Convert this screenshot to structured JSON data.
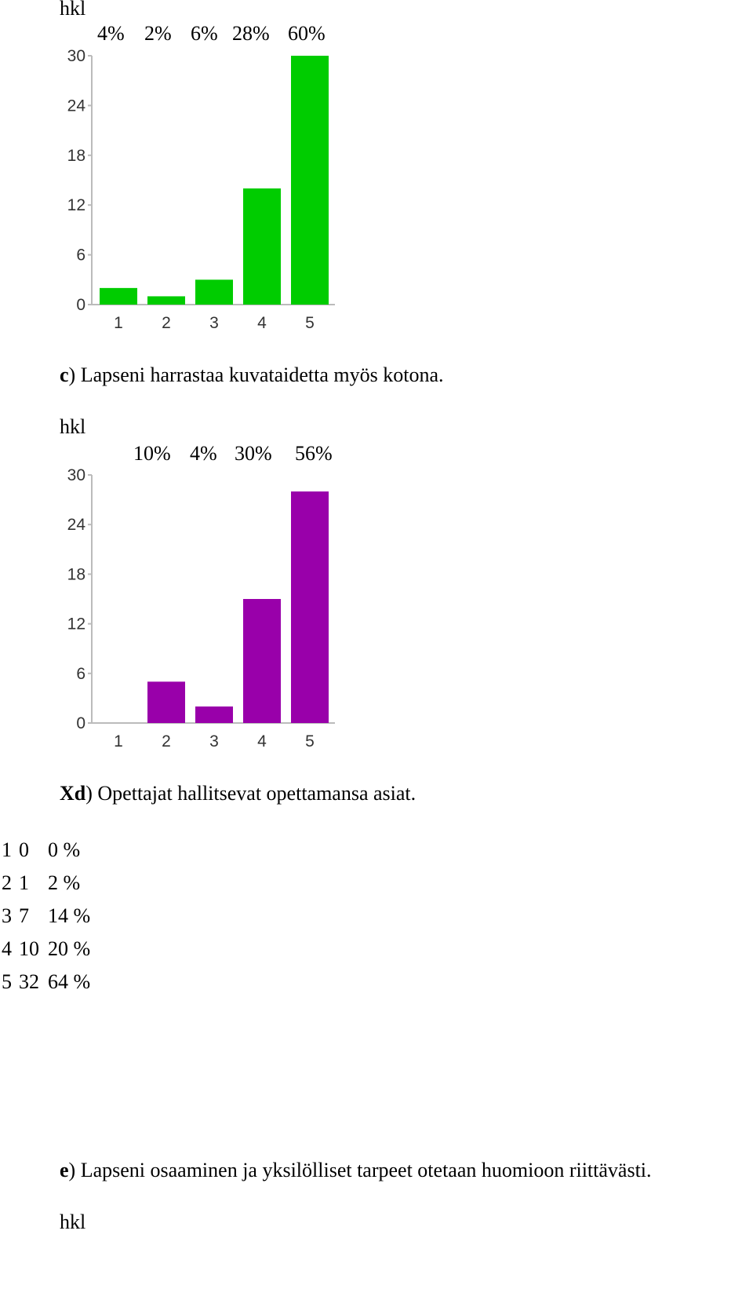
{
  "chart_data": [
    {
      "type": "bar",
      "ylabel": "hkl",
      "categories": [
        "1",
        "2",
        "3",
        "4",
        "5"
      ],
      "values": [
        2,
        1,
        3,
        14,
        30
      ],
      "percent_labels": [
        "4%",
        "2%",
        "6%",
        "28%",
        "60%"
      ],
      "yticks": [
        "0",
        "6",
        "12",
        "18",
        "24",
        "30"
      ],
      "ylim": [
        0,
        30
      ],
      "color": "#00cc00"
    },
    {
      "type": "bar",
      "title_prefix": "c",
      "title": ") Lapseni harrastaa kuvataidetta myös kotona.",
      "ylabel": "hkl",
      "categories": [
        "1",
        "2",
        "3",
        "4",
        "5"
      ],
      "values": [
        0,
        5,
        2,
        15,
        28
      ],
      "percent_labels": [
        "10%",
        "4%",
        "30%",
        "56%"
      ],
      "yticks": [
        "0",
        "6",
        "12",
        "18",
        "24",
        "30"
      ],
      "ylim": [
        0,
        30
      ],
      "color": "#9900aa"
    }
  ],
  "section_d": {
    "prefix": "Xd",
    "title": ") Opettajat hallitsevat opettamansa asiat.",
    "rows": [
      {
        "option": "1",
        "count": "0",
        "percent": "0 %"
      },
      {
        "option": "2",
        "count": "1",
        "percent": "2 %"
      },
      {
        "option": "3",
        "count": "7",
        "percent": "14 %"
      },
      {
        "option": "4",
        "count": "10",
        "percent": "20 %"
      },
      {
        "option": "5",
        "count": "32",
        "percent": "64 %"
      }
    ]
  },
  "section_e": {
    "prefix": "e",
    "title": ") Lapseni osaaminen ja yksilölliset tarpeet otetaan huomioon riittävästi.",
    "ylabel": "hkl"
  }
}
